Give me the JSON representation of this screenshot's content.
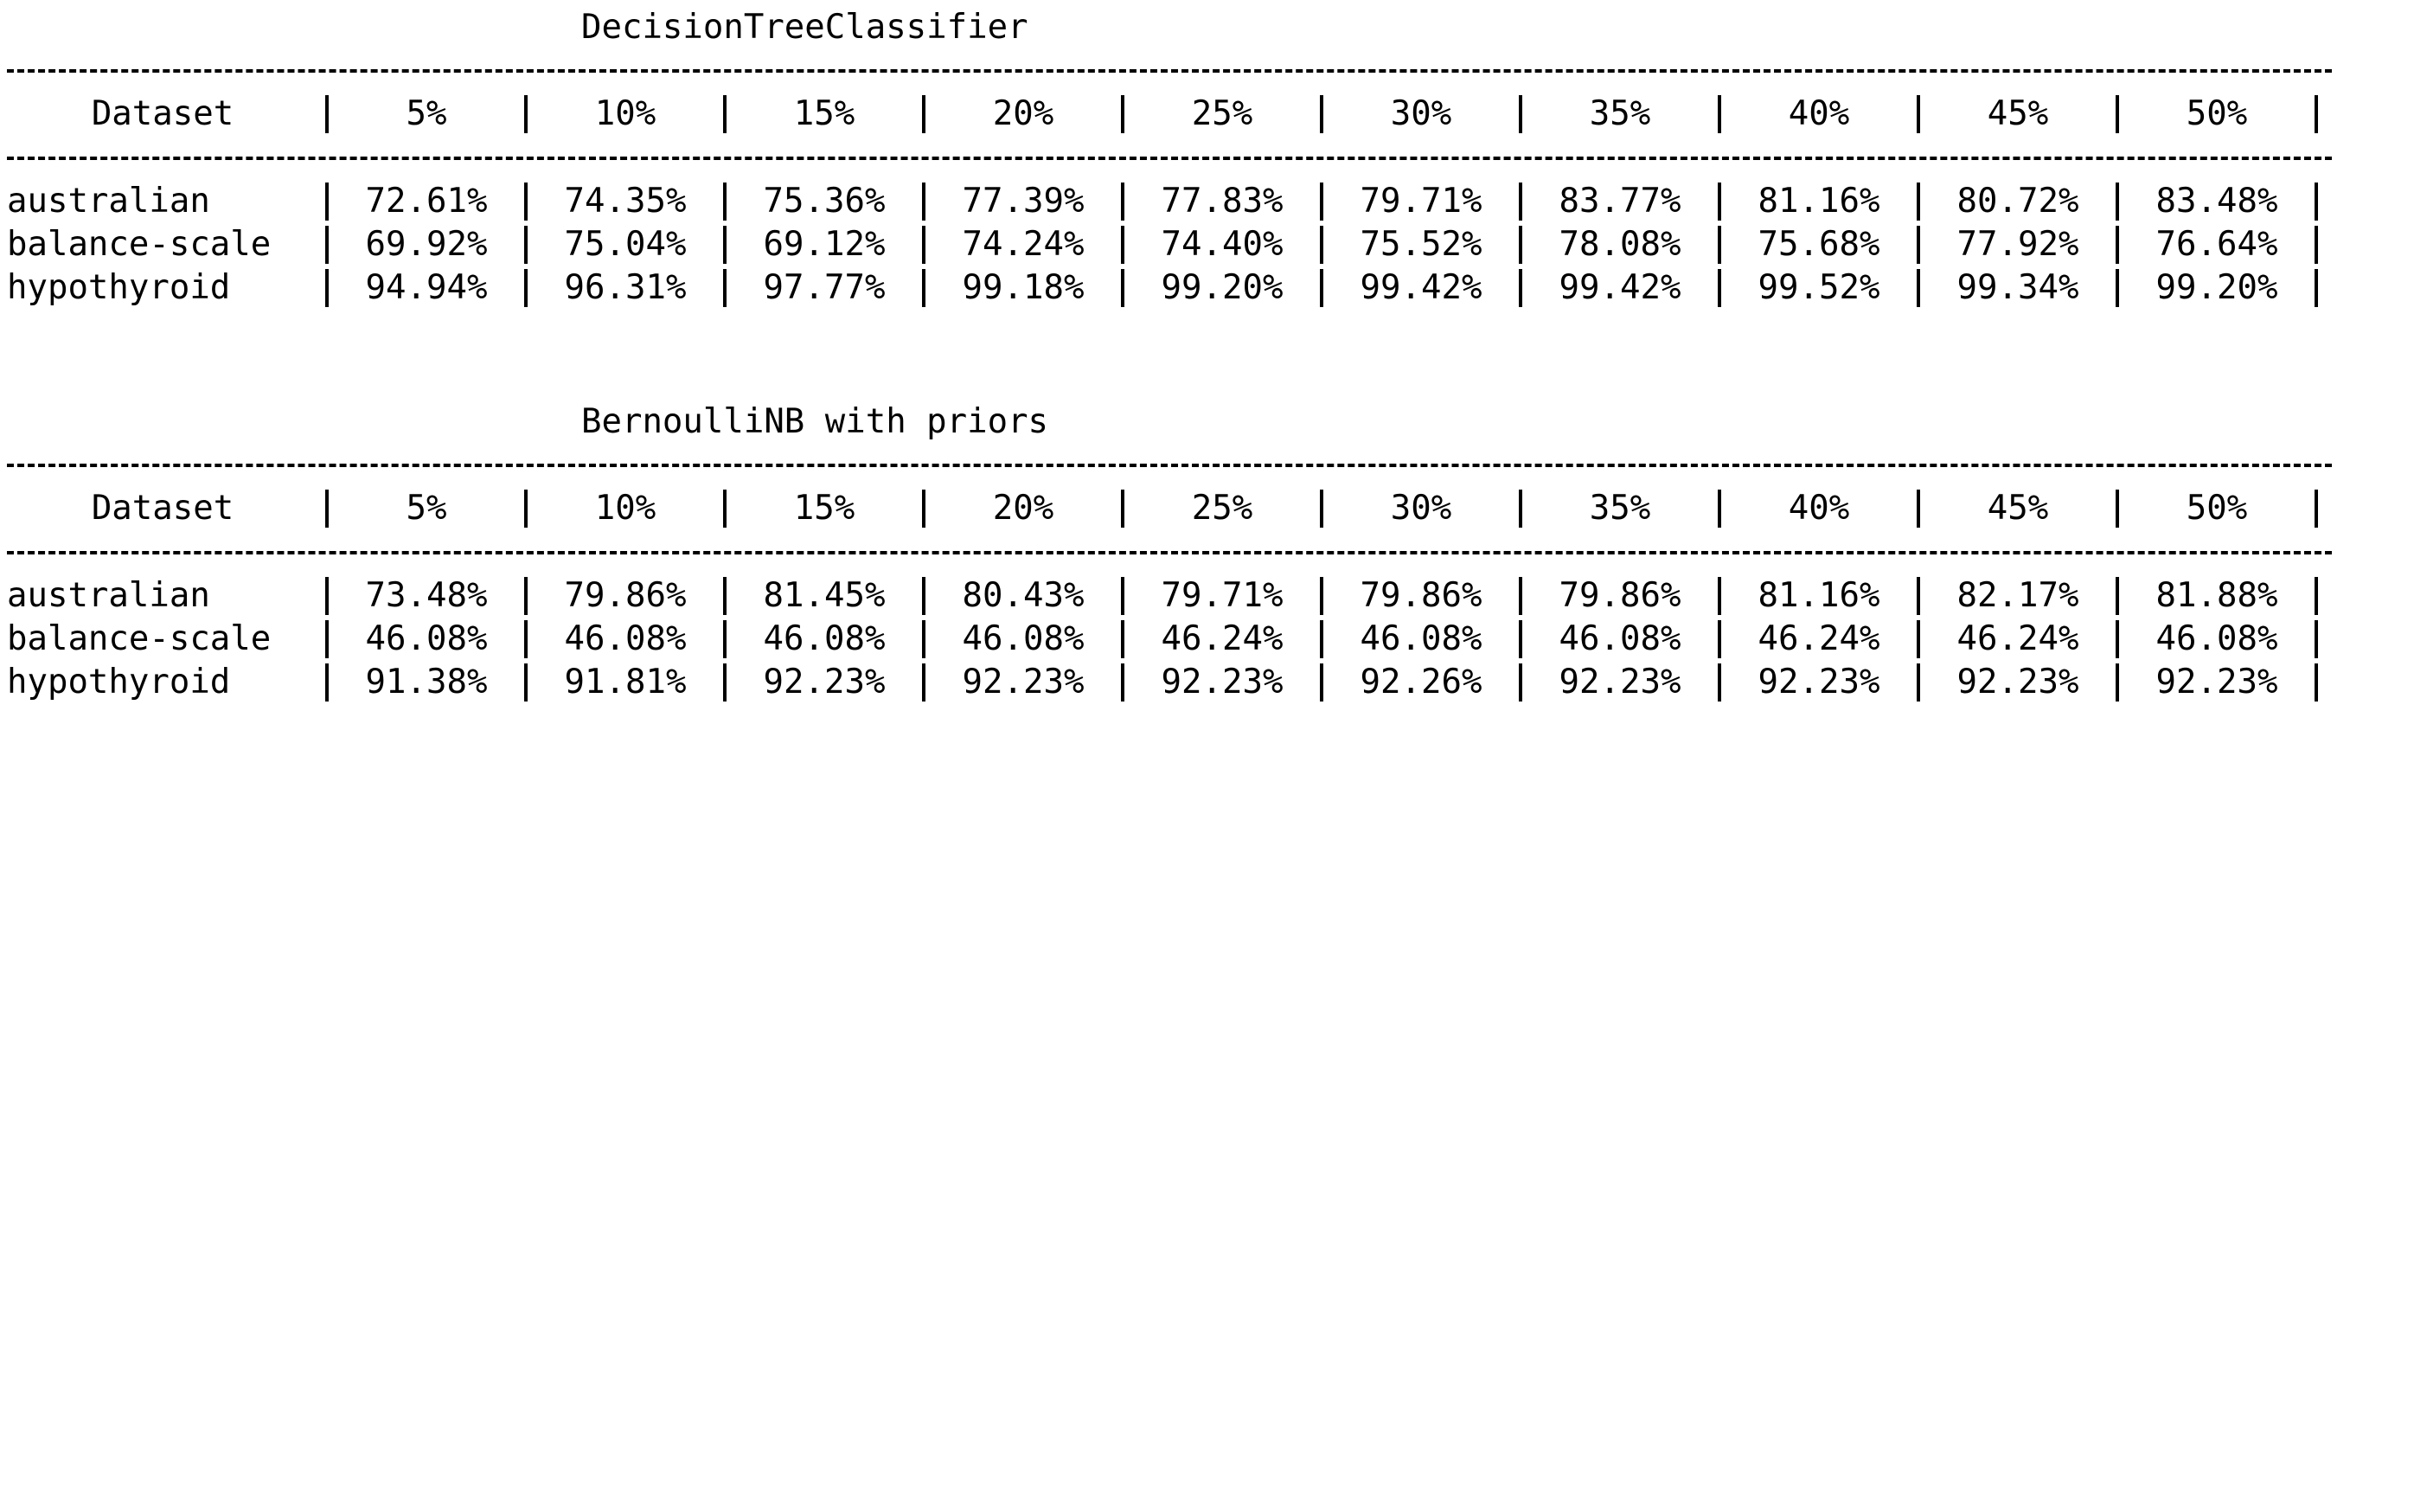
{
  "tables": [
    {
      "title": "DecisionTreeClassifier",
      "header": {
        "dataset_label": "Dataset",
        "columns": [
          "5%",
          "10%",
          "15%",
          "20%",
          "25%",
          "30%",
          "35%",
          "40%",
          "45%",
          "50%"
        ]
      },
      "rows": [
        {
          "dataset": "australian",
          "values": [
            "72.61%",
            "74.35%",
            "75.36%",
            "77.39%",
            "77.83%",
            "79.71%",
            "83.77%",
            "81.16%",
            "80.72%",
            "83.48%"
          ]
        },
        {
          "dataset": "balance-scale",
          "values": [
            "69.92%",
            "75.04%",
            "69.12%",
            "74.24%",
            "74.40%",
            "75.52%",
            "78.08%",
            "75.68%",
            "77.92%",
            "76.64%"
          ]
        },
        {
          "dataset": "hypothyroid",
          "values": [
            "94.94%",
            "96.31%",
            "97.77%",
            "99.18%",
            "99.20%",
            "99.42%",
            "99.42%",
            "99.52%",
            "99.34%",
            "99.20%"
          ]
        }
      ]
    },
    {
      "title": "BernoulliNB with priors",
      "header": {
        "dataset_label": "Dataset",
        "columns": [
          "5%",
          "10%",
          "15%",
          "20%",
          "25%",
          "30%",
          "35%",
          "40%",
          "45%",
          "50%"
        ]
      },
      "rows": [
        {
          "dataset": "australian",
          "values": [
            "73.48%",
            "79.86%",
            "81.45%",
            "80.43%",
            "79.71%",
            "79.86%",
            "79.86%",
            "81.16%",
            "82.17%",
            "81.88%"
          ]
        },
        {
          "dataset": "balance-scale",
          "values": [
            "46.08%",
            "46.08%",
            "46.08%",
            "46.08%",
            "46.24%",
            "46.08%",
            "46.08%",
            "46.24%",
            "46.24%",
            "46.08%"
          ]
        },
        {
          "dataset": "hypothyroid",
          "values": [
            "91.38%",
            "91.81%",
            "92.23%",
            "92.23%",
            "92.23%",
            "92.26%",
            "92.23%",
            "92.23%",
            "92.23%",
            "92.23%"
          ]
        }
      ]
    }
  ]
}
